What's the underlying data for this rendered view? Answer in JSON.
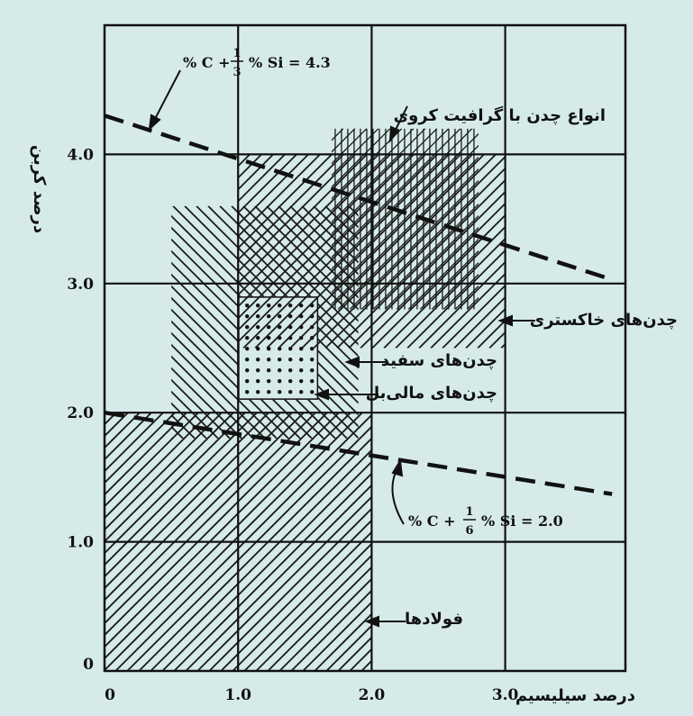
{
  "chart_data": {
    "type": "diagram",
    "xlabel": "درصد سیلیسیم",
    "ylabel": "درصد کربن",
    "xlim": [
      0,
      3.9
    ],
    "ylim": [
      0,
      5.0
    ],
    "x_ticks": [
      "0",
      "1.0",
      "2.0",
      "3.0"
    ],
    "y_ticks": [
      "0",
      "1.0",
      "2.0",
      "3.0",
      "4.0"
    ],
    "grid": true,
    "regions": [
      {
        "name": "فولادها",
        "si": [
          0,
          2.0
        ],
        "c": [
          0,
          2.0
        ],
        "pattern": "diagonal"
      },
      {
        "name": "چدن‌های سفید",
        "si": [
          0.5,
          1.9
        ],
        "c": [
          1.8,
          3.6
        ],
        "pattern": "back-diagonal"
      },
      {
        "name": "چدن‌های مالی‌بل",
        "si": [
          1.0,
          1.6
        ],
        "c": [
          2.1,
          2.9
        ],
        "pattern": "dots"
      },
      {
        "name": "چدن‌های خاکستری",
        "si": [
          1.0,
          3.0
        ],
        "c": [
          2.5,
          4.0
        ],
        "pattern": "diagonal"
      },
      {
        "name": "انواع چدن با گرافیت کروی",
        "si": [
          1.7,
          2.8
        ],
        "c": [
          2.8,
          4.2
        ],
        "pattern": "crosshatch"
      }
    ],
    "lines": [
      {
        "equation_left": "% C +",
        "num": "1",
        "den": "3",
        "equation_right": "% Si = 4.3",
        "from": [
          0,
          4.3
        ],
        "to": [
          3.8,
          3.03
        ]
      },
      {
        "equation_left": "% C +",
        "num": "1",
        "den": "6",
        "equation_right": "% Si = 2.0",
        "from": [
          0,
          2.0
        ],
        "to": [
          3.8,
          1.37
        ]
      }
    ]
  }
}
